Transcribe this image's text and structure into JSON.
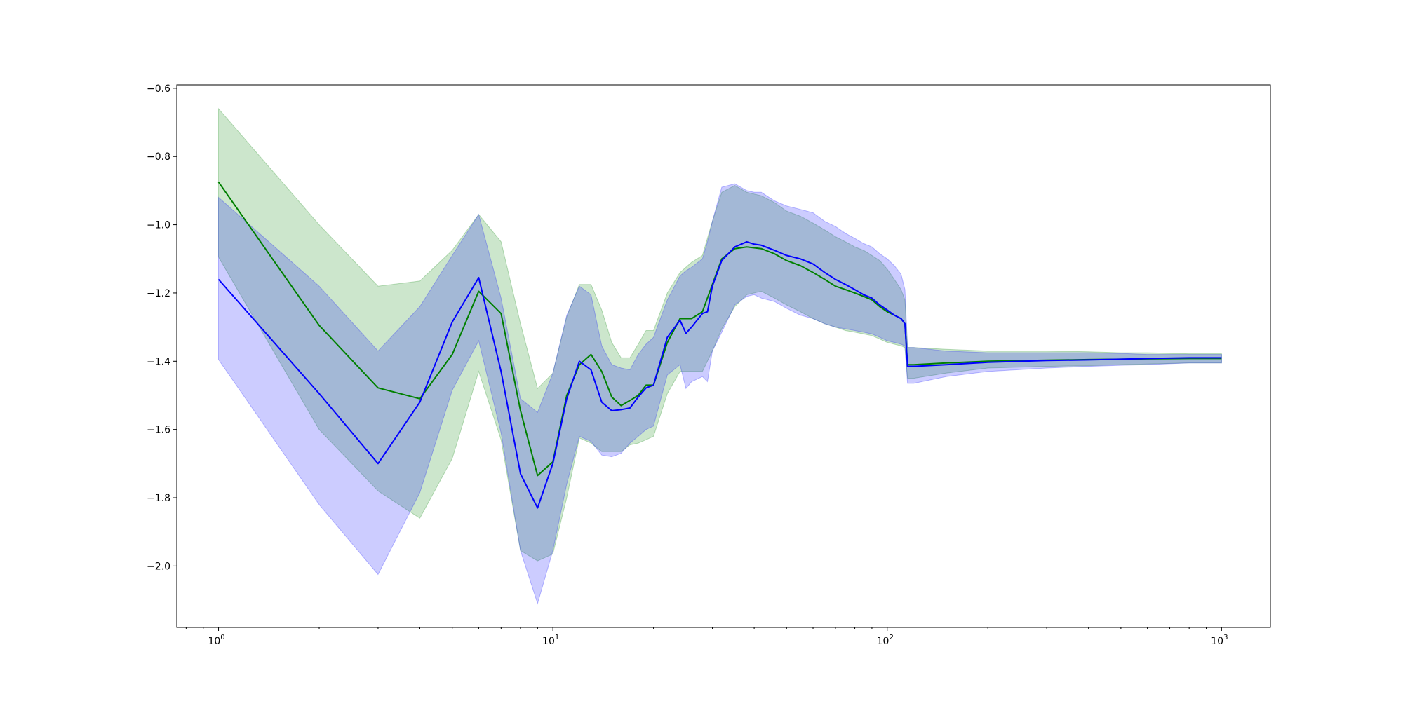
{
  "chart_data": {
    "type": "line",
    "title": "",
    "xlabel": "",
    "ylabel": "",
    "xscale": "log",
    "xlim": [
      0.75,
      1400
    ],
    "ylim": [
      -2.18,
      -0.59
    ],
    "grid": false,
    "legend": "none",
    "x_ticks": [
      {
        "value": 1,
        "base": "10",
        "exp": "0"
      },
      {
        "value": 10,
        "base": "10",
        "exp": "1"
      },
      {
        "value": 100,
        "base": "10",
        "exp": "2"
      },
      {
        "value": 1000,
        "base": "10",
        "exp": "3"
      }
    ],
    "y_ticks": [
      {
        "value": -0.6,
        "label": "−0.6"
      },
      {
        "value": -0.8,
        "label": "−0.8"
      },
      {
        "value": -1.0,
        "label": "−1.0"
      },
      {
        "value": -1.2,
        "label": "−1.2"
      },
      {
        "value": -1.4,
        "label": "−1.4"
      },
      {
        "value": -1.6,
        "label": "−1.6"
      },
      {
        "value": -1.8,
        "label": "−1.8"
      },
      {
        "value": -2.0,
        "label": "−2.0"
      }
    ],
    "series": [
      {
        "color": "#008000",
        "band_color": "#008000",
        "band_opacity": 0.2,
        "x": [
          1,
          2,
          3,
          4,
          5,
          6,
          7,
          8,
          9,
          10,
          11,
          12,
          13,
          14,
          15,
          16,
          17,
          18,
          19,
          20,
          22,
          24,
          26,
          28,
          30,
          32,
          35,
          38,
          42,
          46,
          50,
          55,
          60,
          65,
          70,
          75,
          80,
          85,
          90,
          95,
          100,
          105,
          110,
          113,
          115,
          120,
          150,
          200,
          300,
          400,
          500,
          600,
          800,
          1000
        ],
        "y": [
          -0.875,
          -1.295,
          -1.478,
          -1.51,
          -1.38,
          -1.195,
          -1.26,
          -1.545,
          -1.735,
          -1.695,
          -1.5,
          -1.41,
          -1.38,
          -1.43,
          -1.505,
          -1.53,
          -1.515,
          -1.5,
          -1.47,
          -1.47,
          -1.345,
          -1.275,
          -1.275,
          -1.255,
          -1.175,
          -1.1,
          -1.07,
          -1.065,
          -1.07,
          -1.085,
          -1.105,
          -1.12,
          -1.14,
          -1.16,
          -1.18,
          -1.19,
          -1.2,
          -1.21,
          -1.22,
          -1.24,
          -1.255,
          -1.265,
          -1.275,
          -1.29,
          -1.41,
          -1.41,
          -1.405,
          -1.4,
          -1.397,
          -1.395,
          -1.394,
          -1.393,
          -1.392,
          -1.392
        ],
        "lower": [
          -1.095,
          -1.6,
          -1.78,
          -1.86,
          -1.685,
          -1.43,
          -1.63,
          -1.955,
          -1.985,
          -1.965,
          -1.8,
          -1.625,
          -1.64,
          -1.665,
          -1.665,
          -1.665,
          -1.645,
          -1.64,
          -1.63,
          -1.62,
          -1.495,
          -1.43,
          -1.43,
          -1.43,
          -1.37,
          -1.305,
          -1.24,
          -1.205,
          -1.195,
          -1.215,
          -1.235,
          -1.255,
          -1.275,
          -1.29,
          -1.3,
          -1.31,
          -1.315,
          -1.32,
          -1.325,
          -1.335,
          -1.345,
          -1.35,
          -1.355,
          -1.36,
          -1.45,
          -1.45,
          -1.435,
          -1.42,
          -1.415,
          -1.413,
          -1.41,
          -1.408,
          -1.405,
          -1.405
        ],
        "upper": [
          -0.66,
          -1.0,
          -1.18,
          -1.165,
          -1.075,
          -0.97,
          -1.05,
          -1.29,
          -1.48,
          -1.435,
          -1.27,
          -1.175,
          -1.175,
          -1.25,
          -1.345,
          -1.39,
          -1.39,
          -1.35,
          -1.31,
          -1.31,
          -1.2,
          -1.14,
          -1.11,
          -1.09,
          -0.99,
          -0.905,
          -0.885,
          -0.905,
          -0.915,
          -0.935,
          -0.96,
          -0.975,
          -0.995,
          -1.015,
          -1.035,
          -1.05,
          -1.065,
          -1.075,
          -1.09,
          -1.105,
          -1.13,
          -1.16,
          -1.19,
          -1.22,
          -1.36,
          -1.36,
          -1.365,
          -1.37,
          -1.37,
          -1.372,
          -1.375,
          -1.375,
          -1.378,
          -1.378
        ]
      },
      {
        "color": "#0000ff",
        "band_color": "#0000ff",
        "band_opacity": 0.2,
        "x": [
          1,
          2,
          3,
          4,
          5,
          6,
          7,
          8,
          9,
          10,
          11,
          12,
          13,
          14,
          15,
          16,
          17,
          18,
          19,
          20,
          22,
          24,
          25,
          26,
          28,
          29,
          30,
          32,
          35,
          38,
          40,
          42,
          46,
          50,
          55,
          60,
          65,
          70,
          75,
          80,
          85,
          90,
          95,
          100,
          105,
          110,
          113,
          115,
          120,
          150,
          200,
          300,
          400,
          500,
          600,
          800,
          1000
        ],
        "y": [
          -1.16,
          -1.495,
          -1.7,
          -1.52,
          -1.285,
          -1.155,
          -1.43,
          -1.73,
          -1.83,
          -1.7,
          -1.51,
          -1.4,
          -1.425,
          -1.52,
          -1.545,
          -1.542,
          -1.537,
          -1.505,
          -1.478,
          -1.47,
          -1.33,
          -1.28,
          -1.318,
          -1.3,
          -1.26,
          -1.255,
          -1.18,
          -1.105,
          -1.065,
          -1.05,
          -1.057,
          -1.06,
          -1.075,
          -1.09,
          -1.1,
          -1.115,
          -1.14,
          -1.16,
          -1.175,
          -1.19,
          -1.205,
          -1.215,
          -1.235,
          -1.25,
          -1.265,
          -1.275,
          -1.29,
          -1.415,
          -1.415,
          -1.41,
          -1.403,
          -1.398,
          -1.396,
          -1.394,
          -1.392,
          -1.39,
          -1.39
        ],
        "lower": [
          -1.395,
          -1.82,
          -2.025,
          -1.785,
          -1.485,
          -1.34,
          -1.61,
          -1.955,
          -2.11,
          -1.955,
          -1.76,
          -1.62,
          -1.635,
          -1.675,
          -1.68,
          -1.67,
          -1.64,
          -1.62,
          -1.6,
          -1.59,
          -1.44,
          -1.41,
          -1.48,
          -1.46,
          -1.445,
          -1.46,
          -1.37,
          -1.315,
          -1.235,
          -1.21,
          -1.205,
          -1.215,
          -1.225,
          -1.245,
          -1.265,
          -1.275,
          -1.29,
          -1.3,
          -1.305,
          -1.31,
          -1.315,
          -1.32,
          -1.33,
          -1.34,
          -1.345,
          -1.35,
          -1.355,
          -1.465,
          -1.465,
          -1.445,
          -1.43,
          -1.42,
          -1.415,
          -1.412,
          -1.41,
          -1.405,
          -1.405
        ],
        "upper": [
          -0.92,
          -1.18,
          -1.37,
          -1.24,
          -1.09,
          -0.97,
          -1.215,
          -1.51,
          -1.55,
          -1.435,
          -1.265,
          -1.18,
          -1.205,
          -1.355,
          -1.41,
          -1.42,
          -1.425,
          -1.38,
          -1.35,
          -1.33,
          -1.22,
          -1.15,
          -1.135,
          -1.125,
          -1.1,
          -1.05,
          -0.99,
          -0.89,
          -0.88,
          -0.9,
          -0.905,
          -0.905,
          -0.93,
          -0.945,
          -0.955,
          -0.965,
          -0.99,
          -1.005,
          -1.025,
          -1.04,
          -1.055,
          -1.065,
          -1.085,
          -1.1,
          -1.12,
          -1.145,
          -1.19,
          -1.36,
          -1.36,
          -1.37,
          -1.375,
          -1.375,
          -1.375,
          -1.377,
          -1.38,
          -1.38,
          -1.38
        ]
      }
    ]
  }
}
